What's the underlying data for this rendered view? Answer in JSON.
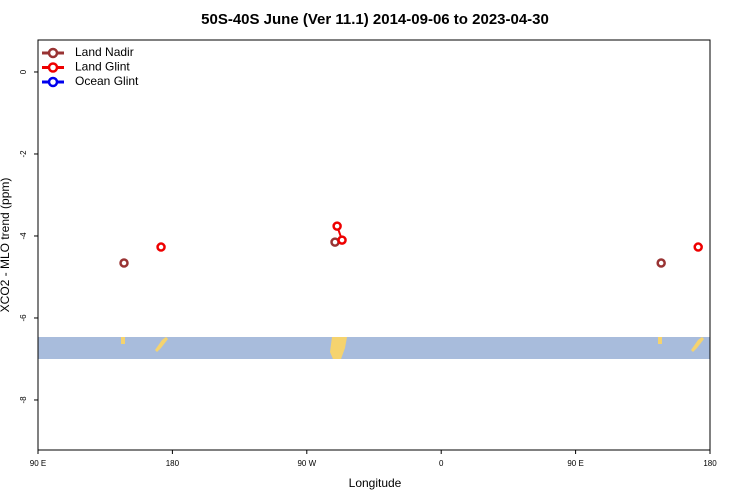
{
  "chart_data": {
    "type": "line",
    "title": "50S-40S June (Ver 11.1)   2014-09-06 to 2023-04-30",
    "x_label": "Longitude",
    "y_label": "XCO2 - MLO trend (ppm)",
    "xlim": [
      90,
      540
    ],
    "ylim": [
      -9.22,
      0.78
    ],
    "xticks": [
      {
        "value": 90,
        "label": "90 E"
      },
      180,
      {
        "value": 270,
        "label": "90 W"
      },
      {
        "value": 360,
        "label": "0"
      },
      {
        "value": 450,
        "label": "90 E"
      },
      {
        "value": 540,
        "label": "180"
      }
    ],
    "yticks": [
      0,
      -2,
      -4,
      -6,
      -8
    ],
    "legend": "top-left",
    "series": [
      {
        "name": "Land Nadir",
        "color": "#993333",
        "x": [
          147.6,
          null,
          288.9,
          null,
          507.3
        ],
        "values": [
          -4.66,
          null,
          -4.15,
          null,
          -4.66
        ]
      },
      {
        "name": "Land Glint",
        "color": "#ee0000",
        "x": [
          172.4,
          null,
          290.3,
          293.6,
          null,
          532.1
        ],
        "values": [
          -4.27,
          null,
          -3.76,
          -4.1,
          null,
          -4.27
        ]
      },
      {
        "name": "Ocean Glint",
        "color": "#0000ee",
        "x": [],
        "values": []
      }
    ]
  }
}
